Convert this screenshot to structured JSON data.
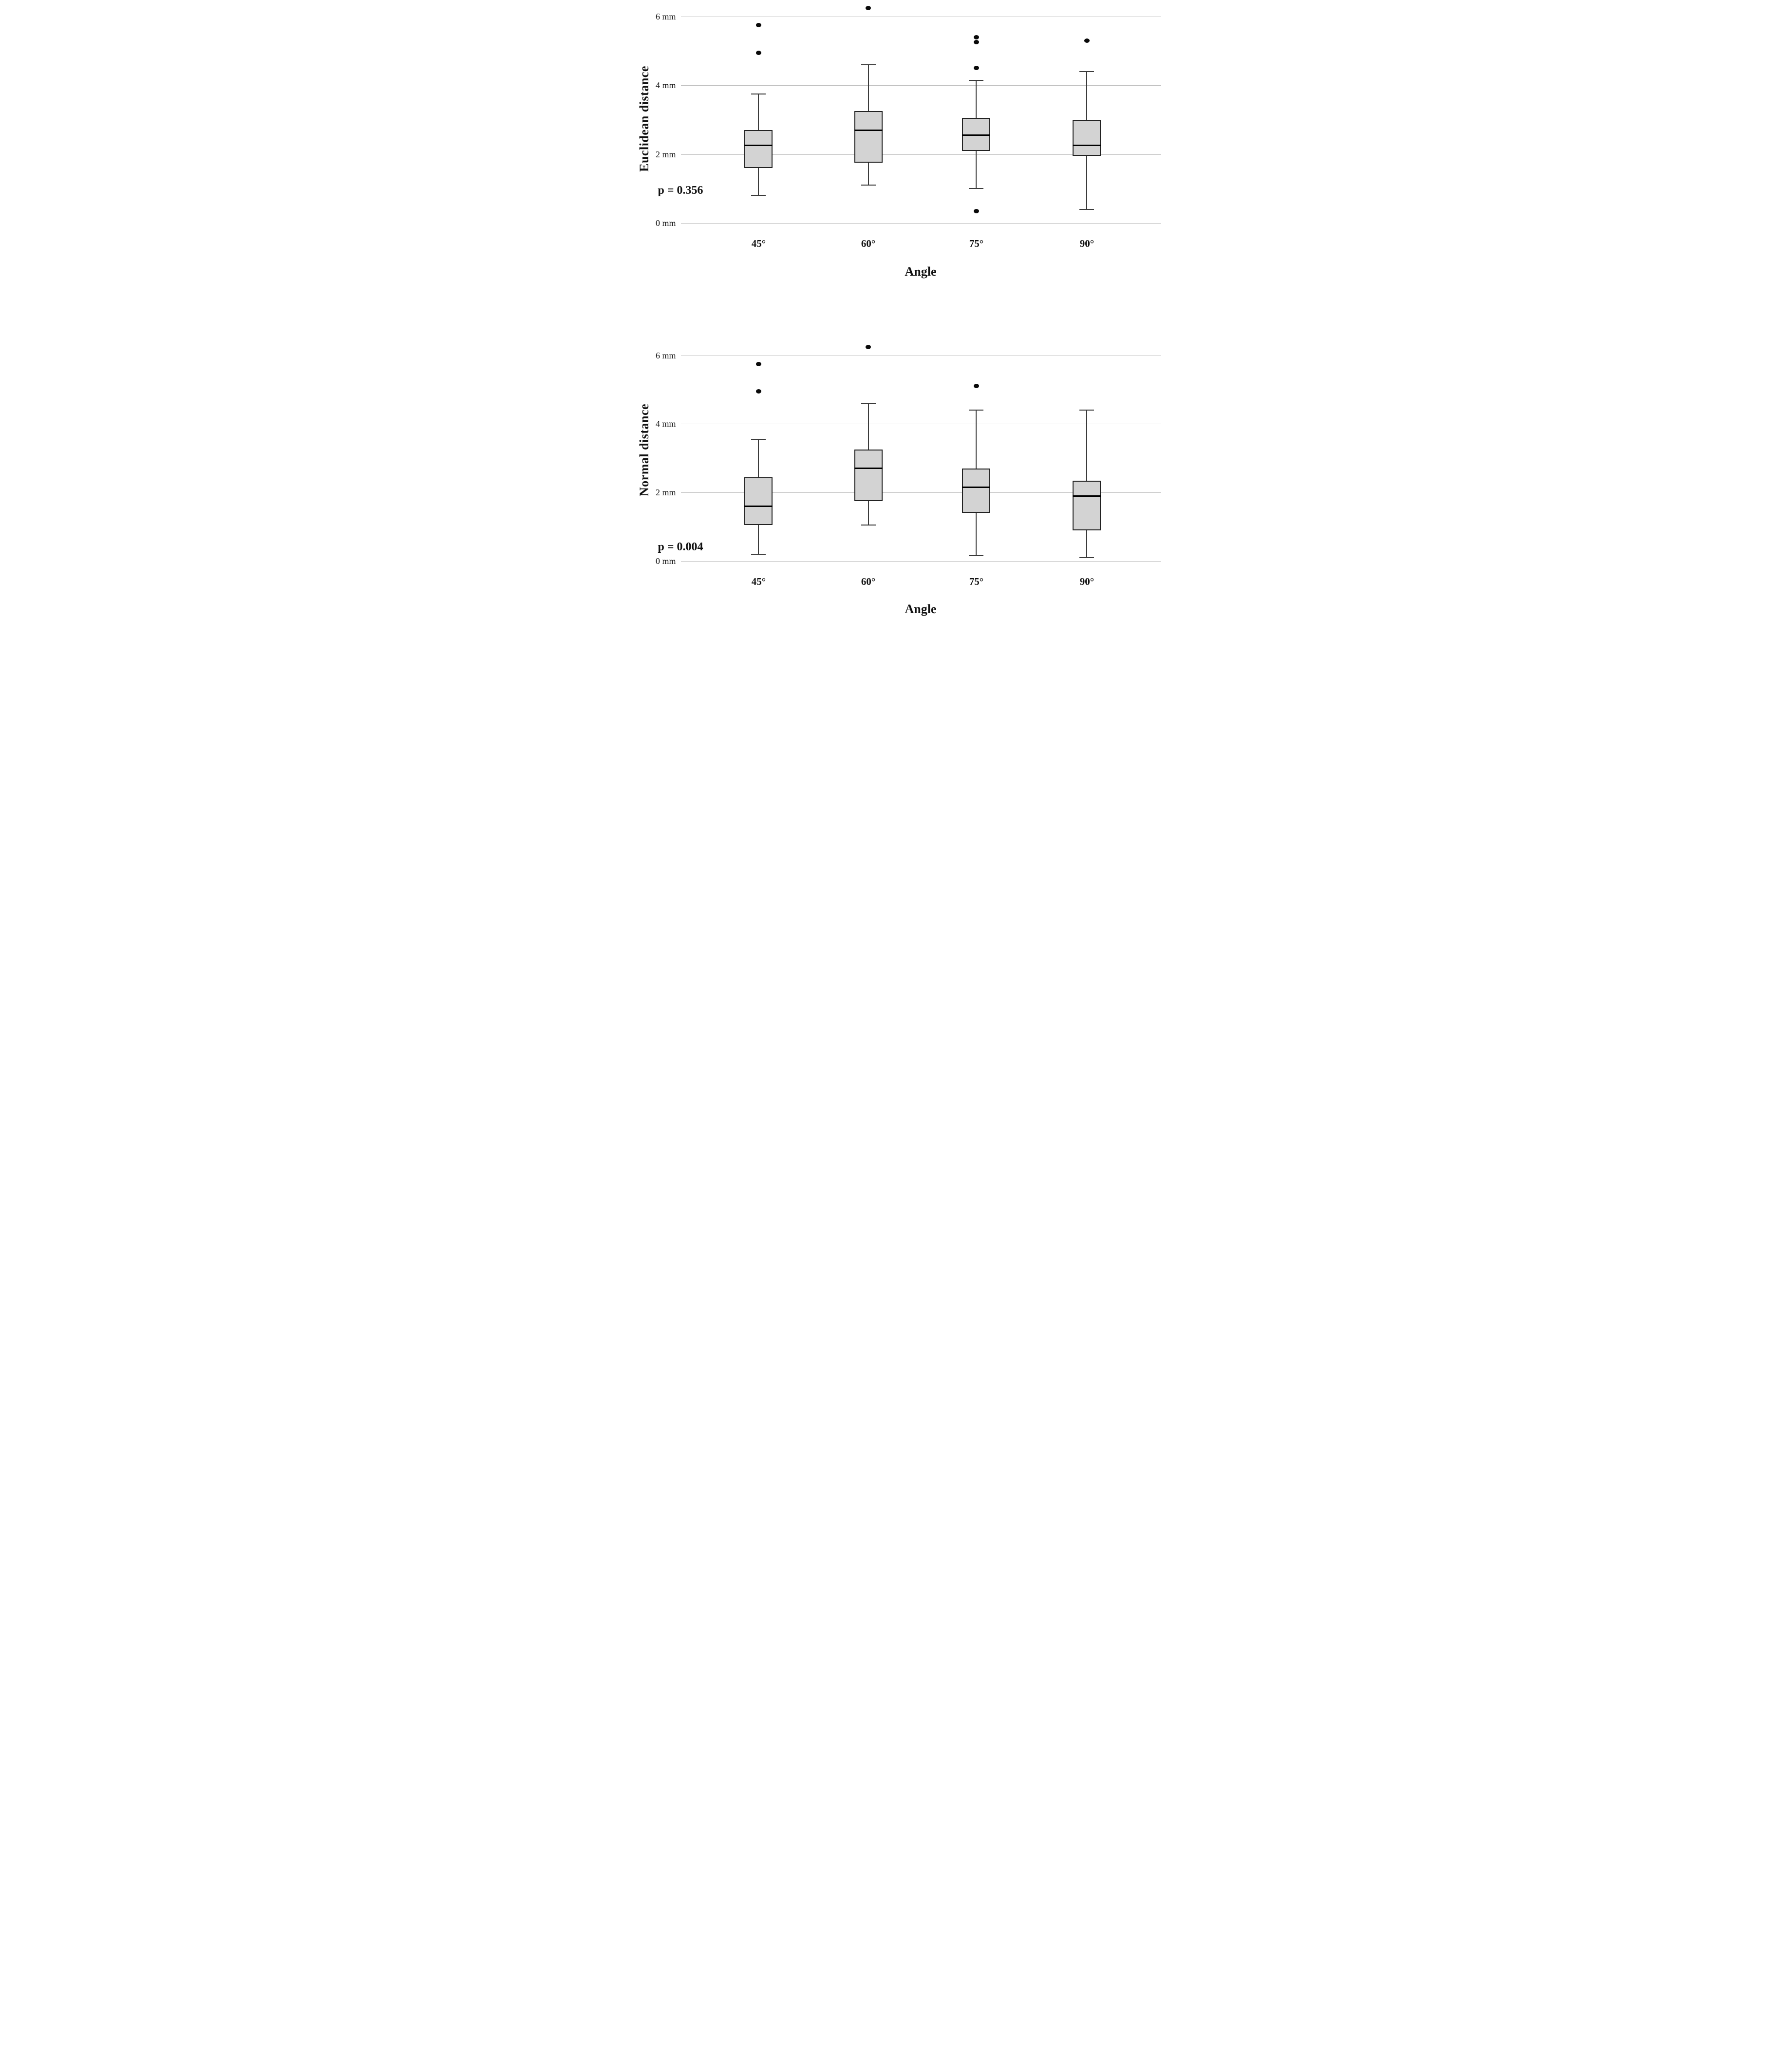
{
  "figure_background": "#ffffff",
  "style": {
    "box_fill": "#d3d3d3",
    "box_border": "#222222",
    "median_color": "#000000",
    "whisker_color": "#3a3a3a",
    "gridline_color": "#bfbfbf",
    "outlier_color": "#0a0a0a",
    "text_color": "#111111"
  },
  "chart_data": [
    {
      "type": "box",
      "ylabel": "Euclidean distance",
      "xlabel": "Angle",
      "unit": "mm",
      "grid": true,
      "legend": "none",
      "ylim": [
        0,
        6.45
      ],
      "yticks": [
        {
          "value": 0,
          "label": "0 mm"
        },
        {
          "value": 2,
          "label": "2 mm"
        },
        {
          "value": 4,
          "label": "4 mm"
        },
        {
          "value": 6,
          "label": "6 mm"
        }
      ],
      "categories": [
        "45°",
        "60°",
        "75°",
        "90°"
      ],
      "annotations": [
        {
          "text": "p = 0.356",
          "position": "lower-left"
        }
      ],
      "series": [
        {
          "category": "45°",
          "whisker_low": 0.8,
          "q1": 1.6,
          "median": 2.25,
          "q3": 2.7,
          "whisker_high": 3.75,
          "outliers": [
            4.95,
            5.75
          ]
        },
        {
          "category": "60°",
          "whisker_low": 1.1,
          "q1": 1.75,
          "median": 2.7,
          "q3": 3.25,
          "whisker_high": 4.6,
          "outliers": [
            6.25
          ]
        },
        {
          "category": "75°",
          "whisker_low": 1.0,
          "q1": 2.1,
          "median": 2.55,
          "q3": 3.05,
          "whisker_high": 4.15,
          "outliers": [
            0.35,
            4.5,
            5.25,
            5.4
          ]
        },
        {
          "category": "90°",
          "whisker_low": 0.4,
          "q1": 1.95,
          "median": 2.25,
          "q3": 3.0,
          "whisker_high": 4.4,
          "outliers": [
            5.3
          ]
        }
      ]
    },
    {
      "type": "box",
      "ylabel": "Normal distance",
      "xlabel": "Angle",
      "unit": "mm",
      "grid": true,
      "legend": "none",
      "ylim": [
        0,
        6.45
      ],
      "yticks": [
        {
          "value": 0,
          "label": "0 mm"
        },
        {
          "value": 2,
          "label": "2 mm"
        },
        {
          "value": 4,
          "label": "4 mm"
        },
        {
          "value": 6,
          "label": "6 mm"
        }
      ],
      "categories": [
        "45°",
        "60°",
        "75°",
        "90°"
      ],
      "annotations": [
        {
          "text": "p = 0.004",
          "position": "lower-left"
        }
      ],
      "series": [
        {
          "category": "45°",
          "whisker_low": 0.2,
          "q1": 1.05,
          "median": 1.6,
          "q3": 2.45,
          "whisker_high": 3.55,
          "outliers": [
            4.95,
            5.75
          ]
        },
        {
          "category": "60°",
          "whisker_low": 1.05,
          "q1": 1.75,
          "median": 2.7,
          "q3": 3.25,
          "whisker_high": 4.6,
          "outliers": [
            6.25
          ]
        },
        {
          "category": "75°",
          "whisker_low": 0.15,
          "q1": 1.4,
          "median": 2.15,
          "q3": 2.7,
          "whisker_high": 4.4,
          "outliers": [
            5.1
          ]
        },
        {
          "category": "90°",
          "whisker_low": 0.1,
          "q1": 0.9,
          "median": 1.9,
          "q3": 2.35,
          "whisker_high": 4.4,
          "outliers": []
        }
      ]
    }
  ]
}
